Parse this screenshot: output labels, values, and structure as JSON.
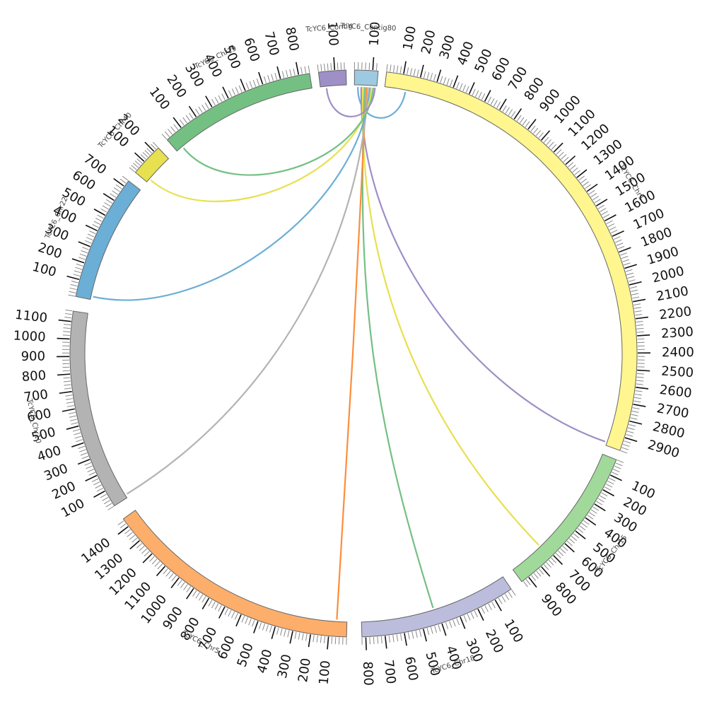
{
  "diagram": {
    "type": "circos-synteny",
    "segments": [
      {
        "id": "TcYC6_Contig80",
        "label": "TcYC6_Contig80",
        "length": 130,
        "color": "#9ecae1",
        "ticks": [
          100
        ]
      },
      {
        "id": "TcYC6_Chr1",
        "label": "TcYC6_Chr1",
        "length": 2980,
        "color": "#fff68f",
        "ticks": [
          100,
          200,
          300,
          400,
          500,
          600,
          700,
          800,
          900,
          1000,
          1100,
          1200,
          1300,
          1400,
          1500,
          1600,
          1700,
          1800,
          1900,
          2000,
          2100,
          2200,
          2300,
          2400,
          2500,
          2600,
          2700,
          2800,
          2900
        ]
      },
      {
        "id": "TcYC6_Chr15",
        "label": "TcYC6_Chr15",
        "length": 950,
        "color": "#a1d99b",
        "ticks": [
          100,
          200,
          300,
          400,
          500,
          600,
          700,
          800,
          900
        ]
      },
      {
        "id": "TcYC6_Chr18",
        "label": "TcYC6_Chr18",
        "length": 820,
        "color": "#bcbddc",
        "ticks": [
          100,
          200,
          300,
          400,
          500,
          600,
          700,
          800
        ]
      },
      {
        "id": "TcYC6_Chr5",
        "label": "TcYC6_Chr5",
        "length": 1450,
        "color": "#fdae6b",
        "ticks": [
          100,
          200,
          300,
          400,
          500,
          600,
          700,
          800,
          900,
          1000,
          1100,
          1200,
          1300,
          1400
        ]
      },
      {
        "id": "TcYC6_Chr10",
        "label": "TcYC6_Chr10",
        "length": 1160,
        "color": "#b3b3b3",
        "ticks": [
          100,
          200,
          300,
          400,
          500,
          600,
          700,
          800,
          900,
          1000,
          1100
        ]
      },
      {
        "id": "TcYC6_Chr22",
        "label": "TcYC6_Chr22",
        "length": 740,
        "color": "#6baed6",
        "ticks": [
          100,
          200,
          300,
          400,
          500,
          600,
          700
        ]
      },
      {
        "id": "TcYC6_Chr40",
        "label": "TcYC6_Chr40",
        "length": 240,
        "color": "#e7e04f",
        "ticks": [
          100,
          200
        ]
      },
      {
        "id": "TcYC6_Chr19",
        "label": "TcYC6_Chr19",
        "length": 860,
        "color": "#74c083",
        "ticks": [
          100,
          200,
          300,
          400,
          500,
          600,
          700,
          800
        ]
      },
      {
        "id": "TcYC6_ContigX",
        "label": "TcYC6_Contig",
        "length": 170,
        "color": "#9e8fc7",
        "ticks": [
          100
        ]
      }
    ],
    "links": [
      {
        "from": "TcYC6_Contig80",
        "from_pos": 20,
        "to": "TcYC6_Chr1",
        "to_pos": 130,
        "color": "#6baed6"
      },
      {
        "from": "TcYC6_Contig80",
        "from_pos": 40,
        "to": "TcYC6_Chr1",
        "to_pos": 2960,
        "color": "#9e8fc7"
      },
      {
        "from": "TcYC6_Contig80",
        "from_pos": 50,
        "to": "TcYC6_Chr15",
        "to_pos": 720,
        "color": "#e7e04f"
      },
      {
        "from": "TcYC6_Contig80",
        "from_pos": 60,
        "to": "TcYC6_Chr18",
        "to_pos": 420,
        "color": "#74c083"
      },
      {
        "from": "TcYC6_Contig80",
        "from_pos": 70,
        "to": "TcYC6_Chr5",
        "to_pos": 60,
        "color": "#fd8d3c"
      },
      {
        "from": "TcYC6_Contig80",
        "from_pos": 80,
        "to": "TcYC6_Chr10",
        "to_pos": 20,
        "color": "#b3b3b3"
      },
      {
        "from": "TcYC6_Contig80",
        "from_pos": 90,
        "to": "TcYC6_Chr22",
        "to_pos": 20,
        "color": "#6baed6"
      },
      {
        "from": "TcYC6_Contig80",
        "from_pos": 100,
        "to": "TcYC6_Chr40",
        "to_pos": 30,
        "color": "#e7e04f"
      },
      {
        "from": "TcYC6_Contig80",
        "from_pos": 110,
        "to": "TcYC6_Chr19",
        "to_pos": 40,
        "color": "#74c083"
      },
      {
        "from": "TcYC6_Contig80",
        "from_pos": 120,
        "to": "TcYC6_ContigX",
        "to_pos": 40,
        "color": "#9e8fc7"
      }
    ]
  }
}
